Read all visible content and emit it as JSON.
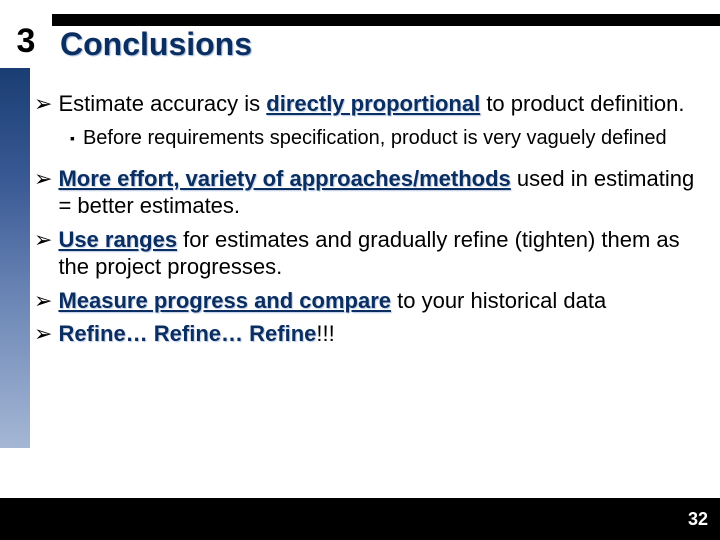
{
  "section_number": "3",
  "title": "Conclusions",
  "page_number": "32",
  "bullets": {
    "b1_pre": "Estimate accuracy is ",
    "b1_hl": "directly proportional",
    "b1_post": " to product definition.",
    "b1_sub": "Before requirements specification, product is very vaguely defined",
    "b2_hl": "More effort, variety of approaches/methods",
    "b2_post": " used in estimating = better estimates.",
    "b3_hl": "Use ranges",
    "b3_post": " for estimates and gradually refine (tighten) them as the project progresses.",
    "b4_hl": "Measure progress and compare",
    "b4_post": " to your historical data",
    "b5_hl1": "Refine… Refine… Refine",
    "b5_post": "!!!"
  },
  "glyphs": {
    "arrow": "➢",
    "square": "▪"
  }
}
